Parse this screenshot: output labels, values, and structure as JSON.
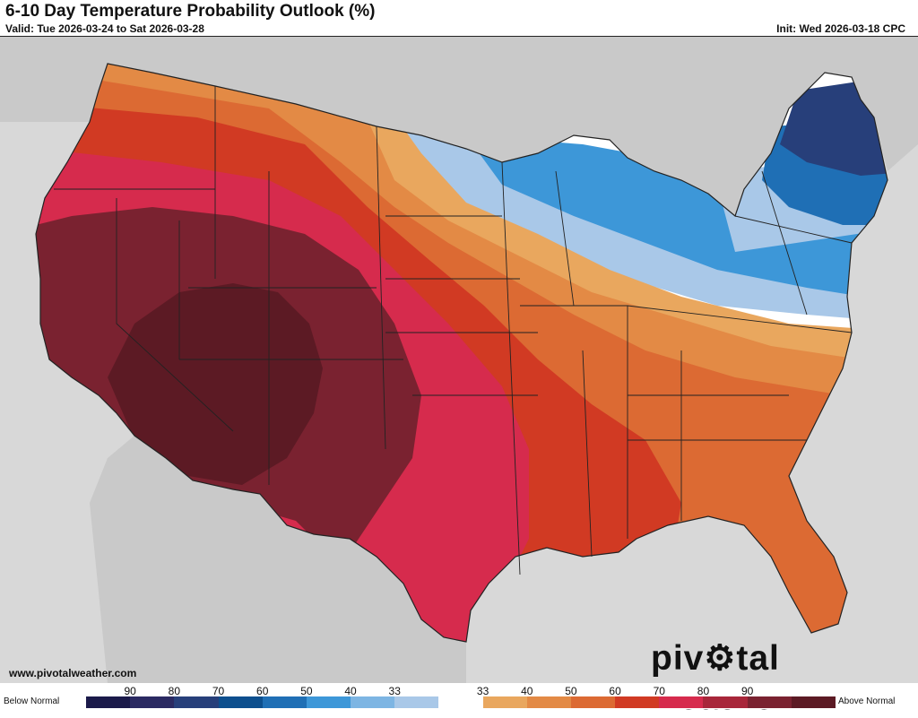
{
  "header": {
    "title": "6-10 Day Temperature Probability Outlook (%)",
    "valid": "Valid: Tue 2026-03-24 to Sat 2026-03-28",
    "init": "Init: Wed 2026-03-18 CPC"
  },
  "footer": {
    "website": "www.pivotalweather.com",
    "brand_pre": "piv",
    "brand_post": "tal weather"
  },
  "legend": {
    "below_label": "Below Normal",
    "above_label": "Above Normal",
    "tick_labels": [
      "90",
      "80",
      "70",
      "60",
      "50",
      "40",
      "33",
      "33",
      "40",
      "50",
      "60",
      "70",
      "80",
      "90"
    ],
    "colors": [
      "#1b1a4a",
      "#2b2a62",
      "#273f7a",
      "#0d4f8e",
      "#1f6fb5",
      "#3d97d8",
      "#7db5e3",
      "#a9c8e8",
      "#ffffff",
      "#e9a75e",
      "#e38a45",
      "#dc6a33",
      "#d13a23",
      "#d62b4d",
      "#a8263a",
      "#7a2230",
      "#5c1a24"
    ]
  },
  "map_colors": {
    "land_base": "#d8d8d8",
    "water": "#d8d8d8",
    "neighbor_land": "#c9c9c9"
  }
}
